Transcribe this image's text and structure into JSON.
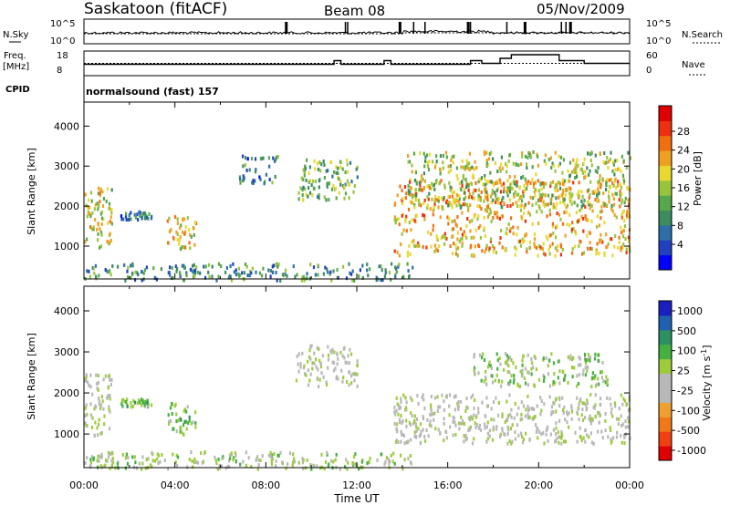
{
  "header": {
    "station": "Saskatoon (fitACF)",
    "beam": "Beam 08",
    "date": "05/Nov/2009"
  },
  "chart_data": [
    {
      "type": "line",
      "panel": "noise",
      "left_label": "N.Sky",
      "right_label": "N.Search",
      "left_ticks": [
        "10^5",
        "10^0"
      ],
      "right_ticks": [
        "10^5",
        "10^0"
      ],
      "x_ticks": [
        "00:00",
        "04:00",
        "08:00",
        "12:00",
        "16:00",
        "20:00",
        "00:00"
      ],
      "xlim_hours": [
        0,
        24
      ]
    },
    {
      "type": "line",
      "panel": "frequency",
      "left_label": "Freq.",
      "left_unit": "[MHz]",
      "right_label": "Nave",
      "left_ticks": [
        "18",
        "8"
      ],
      "right_ticks": [
        "60",
        "0"
      ],
      "cpid_label": "CPID",
      "cpid_text": "normalsound (fast) 157",
      "nave_steps": [
        {
          "start": 0,
          "end": 11,
          "value": 0.46
        },
        {
          "start": 11,
          "end": 11.3,
          "value": 0.62
        },
        {
          "start": 11.3,
          "end": 13.2,
          "value": 0.46
        },
        {
          "start": 13.2,
          "end": 13.5,
          "value": 0.62
        },
        {
          "start": 13.5,
          "end": 17.0,
          "value": 0.46
        },
        {
          "start": 17.0,
          "end": 17.5,
          "value": 0.62
        },
        {
          "start": 17.5,
          "end": 18.3,
          "value": 0.5
        },
        {
          "start": 18.3,
          "end": 18.8,
          "value": 0.72
        },
        {
          "start": 18.8,
          "end": 20.9,
          "value": 0.88
        },
        {
          "start": 20.9,
          "end": 22.0,
          "value": 0.62
        },
        {
          "start": 22.0,
          "end": 24,
          "value": 0.5
        }
      ]
    },
    {
      "type": "heatmap",
      "panel": "power",
      "ylabel": "Slant Range [km]",
      "xlabel": "",
      "y_ticks": [
        1000,
        2000,
        3000,
        4000
      ],
      "ylim": [
        180,
        4600
      ],
      "xlim_hours": [
        0,
        24
      ],
      "colorbar_label": "Power [dB]",
      "colorbar_ticks": [
        "28",
        "24",
        "20",
        "16",
        "12",
        "8",
        "4"
      ],
      "colorbar_colors": [
        "#0000ff",
        "#2040c0",
        "#2c6ea8",
        "#3c8c60",
        "#56a84a",
        "#98c43c",
        "#e8d830",
        "#f0a020",
        "#f07010",
        "#ee3010",
        "#e00000"
      ],
      "echo_regions": [
        {
          "t0": 0.0,
          "t1": 1.2,
          "r0": 1000,
          "r1": 2500,
          "power": 18
        },
        {
          "t0": 1.6,
          "t1": 3.0,
          "r0": 1700,
          "r1": 1900,
          "power": 8
        },
        {
          "t0": 3.6,
          "t1": 4.9,
          "r0": 950,
          "r1": 1800,
          "power": 20
        },
        {
          "t0": 6.8,
          "t1": 8.5,
          "r0": 2600,
          "r1": 3300,
          "power": 8
        },
        {
          "t0": 9.3,
          "t1": 12.0,
          "r0": 2200,
          "r1": 3200,
          "power": 14
        },
        {
          "t0": 13.6,
          "t1": 24.0,
          "r0": 800,
          "r1": 2700,
          "power": 22
        },
        {
          "t0": 14.2,
          "t1": 24.0,
          "r0": 2000,
          "r1": 3400,
          "power": 16
        },
        {
          "t0": 0.0,
          "t1": 14.5,
          "r0": 180,
          "r1": 600,
          "power": 10
        }
      ]
    },
    {
      "type": "heatmap",
      "panel": "velocity",
      "ylabel": "Slant Range [km]",
      "xlabel": "Time UT",
      "y_ticks": [
        1000,
        2000,
        3000,
        4000
      ],
      "ylim": [
        180,
        4600
      ],
      "xlim_hours": [
        0,
        24
      ],
      "x_ticks": [
        "00:00",
        "04:00",
        "08:00",
        "12:00",
        "16:00",
        "20:00",
        "00:00"
      ],
      "colorbar_label": "Velocity [m s^-1]",
      "colorbar_ticks": [
        "1000",
        "500",
        "100",
        "25",
        "-25",
        "-100",
        "-500",
        "-1000"
      ],
      "colorbar_colors": [
        "#1a20c0",
        "#2060b0",
        "#2c9060",
        "#44b040",
        "#9ccc3c",
        "#b8b8b8",
        "#b8b8b8",
        "#f0a030",
        "#f07818",
        "#f04010",
        "#e00000"
      ],
      "echo_regions": [
        {
          "t0": 0.0,
          "t1": 1.2,
          "r0": 1000,
          "r1": 2500,
          "velocity": 0
        },
        {
          "t0": 1.6,
          "t1": 3.0,
          "r0": 1700,
          "r1": 1900,
          "velocity": 300
        },
        {
          "t0": 3.6,
          "t1": 4.9,
          "r0": 950,
          "r1": 1800,
          "velocity": 300
        },
        {
          "t0": 9.3,
          "t1": 12.0,
          "r0": 2200,
          "r1": 3200,
          "velocity": 0
        },
        {
          "t0": 13.6,
          "t1": 24.0,
          "r0": 800,
          "r1": 2000,
          "velocity": 0
        },
        {
          "t0": 17.0,
          "t1": 23.0,
          "r0": 2200,
          "r1": 3000,
          "velocity": 200
        },
        {
          "t0": 0.0,
          "t1": 14.5,
          "r0": 180,
          "r1": 600,
          "velocity": 150
        }
      ]
    }
  ]
}
